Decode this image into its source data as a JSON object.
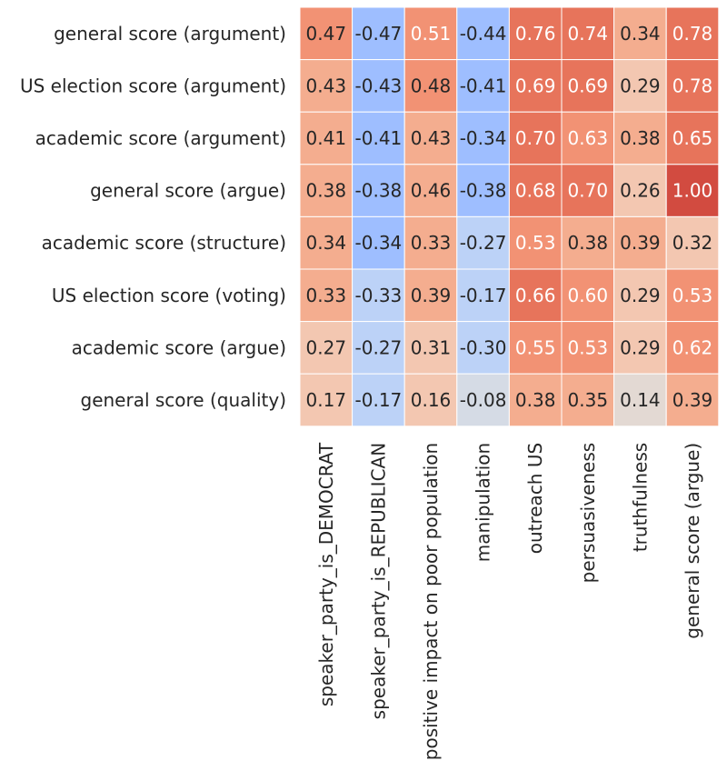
{
  "chart_data": {
    "type": "heatmap",
    "title": "",
    "xlabel": "",
    "ylabel": "",
    "colormap": "coolwarm",
    "vmin": -1.0,
    "vmax": 1.0,
    "colorbar": false,
    "grid_line_color": "#ffffff",
    "dark_text_color": "#262626",
    "light_text_color": "#ffffff",
    "row_labels": [
      "general score (argument)",
      "US election score (argument)",
      "academic score (argument)",
      "general score (argue)",
      "academic score (structure)",
      "US election score (voting)",
      "academic score (argue)",
      "general score (quality)"
    ],
    "column_labels": [
      "speaker_party_is_DEMOCRAT",
      "speaker_party_is_REPUBLICAN",
      "positive impact on poor population",
      "manipulation",
      "outreach US",
      "persuasiveness",
      "truthfulness",
      "general score (argue)"
    ],
    "values": [
      [
        0.47,
        -0.47,
        0.51,
        -0.44,
        0.76,
        0.74,
        0.34,
        0.78
      ],
      [
        0.43,
        -0.43,
        0.48,
        -0.41,
        0.69,
        0.69,
        0.29,
        0.78
      ],
      [
        0.41,
        -0.41,
        0.43,
        -0.34,
        0.7,
        0.63,
        0.38,
        0.65
      ],
      [
        0.38,
        -0.38,
        0.46,
        -0.38,
        0.68,
        0.7,
        0.26,
        1.0
      ],
      [
        0.34,
        -0.34,
        0.33,
        -0.27,
        0.53,
        0.38,
        0.39,
        0.32
      ],
      [
        0.33,
        -0.33,
        0.39,
        -0.17,
        0.66,
        0.6,
        0.29,
        0.53
      ],
      [
        0.27,
        -0.27,
        0.31,
        -0.3,
        0.55,
        0.53,
        0.29,
        0.62
      ],
      [
        0.17,
        -0.17,
        0.16,
        -0.08,
        0.38,
        0.35,
        0.14,
        0.39
      ]
    ],
    "value_labels": [
      [
        "0.47",
        "-0.47",
        "0.51",
        "-0.44",
        "0.76",
        "0.74",
        "0.34",
        "0.78"
      ],
      [
        "0.43",
        "-0.43",
        "0.48",
        "-0.41",
        "0.69",
        "0.69",
        "0.29",
        "0.78"
      ],
      [
        "0.41",
        "-0.41",
        "0.43",
        "-0.34",
        "0.70",
        "0.63",
        "0.38",
        "0.65"
      ],
      [
        "0.38",
        "-0.38",
        "0.46",
        "-0.38",
        "0.68",
        "0.70",
        "0.26",
        "1.00"
      ],
      [
        "0.34",
        "-0.34",
        "0.33",
        "-0.27",
        "0.53",
        "0.38",
        "0.39",
        "0.32"
      ],
      [
        "0.33",
        "-0.33",
        "0.39",
        "-0.17",
        "0.66",
        "0.60",
        "0.29",
        "0.53"
      ],
      [
        "0.27",
        "-0.27",
        "0.31",
        "-0.30",
        "0.55",
        "0.53",
        "0.29",
        "0.62"
      ],
      [
        "0.17",
        "-0.17",
        "0.16",
        "-0.08",
        "0.38",
        "0.35",
        "0.14",
        "0.39"
      ]
    ],
    "color_bins": [
      {
        "min": 0.95,
        "color": "#d24b40"
      },
      {
        "min": 0.64,
        "color": "#e7745b"
      },
      {
        "min": 0.47,
        "color": "#f29274"
      },
      {
        "min": 0.33,
        "color": "#f4ad8f"
      },
      {
        "min": 0.16,
        "color": "#f3c7b1"
      },
      {
        "min": 0.0,
        "color": "#e3d9d3"
      },
      {
        "min": -0.1,
        "color": "#d5dbe5"
      },
      {
        "min": -0.33,
        "color": "#bcd2f7"
      },
      {
        "min": -1.0,
        "color": "#9ebeff"
      }
    ],
    "light_text_cells": [
      [
        0,
        2
      ],
      [
        0,
        4
      ],
      [
        0,
        5
      ],
      [
        0,
        7
      ],
      [
        1,
        4
      ],
      [
        1,
        5
      ],
      [
        1,
        7
      ],
      [
        2,
        4
      ],
      [
        2,
        5
      ],
      [
        2,
        7
      ],
      [
        3,
        4
      ],
      [
        3,
        5
      ],
      [
        3,
        7
      ],
      [
        4,
        4
      ],
      [
        5,
        4
      ],
      [
        5,
        5
      ],
      [
        5,
        7
      ],
      [
        6,
        4
      ],
      [
        6,
        5
      ],
      [
        6,
        7
      ]
    ]
  }
}
